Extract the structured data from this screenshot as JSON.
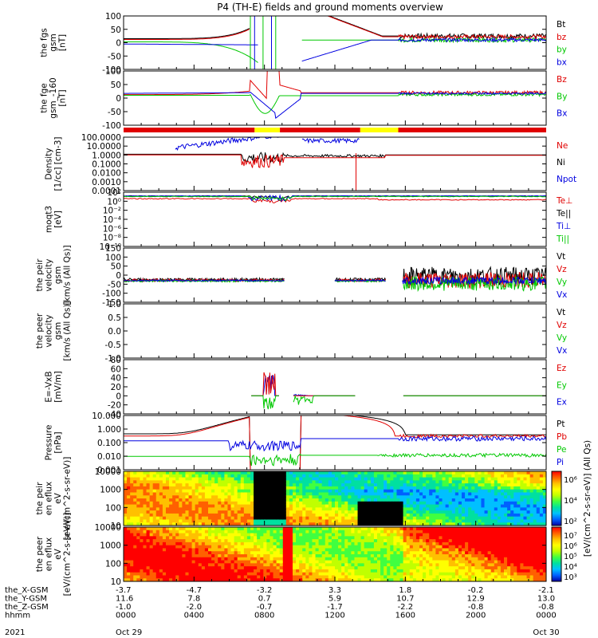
{
  "title": "P4 (TH-E) fields and ground moments overview",
  "colors": {
    "black": "#000000",
    "red": "#e00000",
    "green": "#00c800",
    "blue": "#0000e0",
    "yellow": "#ffff00"
  },
  "chart_data": [
    {
      "type": "line",
      "ylabel": "the fgs gsm [nT]",
      "ylim": [
        -100,
        100
      ],
      "yticks": [
        "100",
        "50",
        "0",
        "-50",
        "-100"
      ],
      "legend": [
        {
          "label": "Bt",
          "color": "black"
        },
        {
          "label": "bz",
          "color": "red"
        },
        {
          "label": "by",
          "color": "green"
        },
        {
          "label": "bx",
          "color": "blue"
        }
      ]
    },
    {
      "type": "line",
      "ylabel": "the fge gsm_-160 [nT]",
      "ylim": [
        -130,
        100
      ],
      "yticks": [
        "100",
        "50",
        "0",
        "-50",
        "-100"
      ],
      "legend": [
        {
          "label": "Bz",
          "color": "red"
        },
        {
          "label": "By",
          "color": "green"
        },
        {
          "label": "Bx",
          "color": "blue"
        }
      ]
    },
    {
      "type": "line",
      "ylabel": "Density [1/cc] [cm-3]",
      "scale": "log",
      "ylim": [
        0.0001,
        100
      ],
      "yticks": [
        "100.0000",
        "10.0000",
        "1.0000",
        "0.1000",
        "0.0100",
        "0.0010",
        "0.0001"
      ],
      "legend": [
        {
          "label": "Ne",
          "color": "red"
        },
        {
          "label": "Ni",
          "color": "black"
        },
        {
          "label": "Npot",
          "color": "blue"
        }
      ]
    },
    {
      "type": "line",
      "ylabel": "moqt3 [eV]",
      "scale": "log",
      "yticks": [
        "10²",
        "10⁰",
        "10⁻²",
        "10⁻⁴",
        "10⁻⁶",
        "10⁻⁸",
        "10⁻¹⁰"
      ],
      "legend": [
        {
          "label": "Te⊥",
          "color": "red"
        },
        {
          "label": "Te||",
          "color": "black"
        },
        {
          "label": "Ti⊥",
          "color": "blue"
        },
        {
          "label": "Ti||",
          "color": "green"
        }
      ]
    },
    {
      "type": "line",
      "ylabel": "the peir velocity gsm [km/s (All Qs)]",
      "ylim": [
        -150,
        150
      ],
      "yticks": [
        "150",
        "100",
        "50",
        "0",
        "-50",
        "-100",
        "-150"
      ],
      "legend": [
        {
          "label": "Vt",
          "color": "black"
        },
        {
          "label": "Vz",
          "color": "red"
        },
        {
          "label": "Vy",
          "color": "green"
        },
        {
          "label": "Vx",
          "color": "blue"
        }
      ]
    },
    {
      "type": "line",
      "ylabel": "the peer velocity gsm [km/s (All Qs)]",
      "ylim": [
        -1,
        1
      ],
      "yticks": [
        "1.0",
        "0.5",
        "0.0",
        "-0.5",
        "-1.0"
      ],
      "legend": [
        {
          "label": "Vt",
          "color": "black"
        },
        {
          "label": "Vz",
          "color": "red"
        },
        {
          "label": "Vy",
          "color": "green"
        },
        {
          "label": "Vx",
          "color": "blue"
        }
      ]
    },
    {
      "type": "line",
      "ylabel": "E=-VxB [mV/m]",
      "ylim": [
        -40,
        80
      ],
      "yticks": [
        "80",
        "60",
        "40",
        "20",
        "0",
        "-20",
        "-40"
      ],
      "legend": [
        {
          "label": "Ez",
          "color": "red"
        },
        {
          "label": "Ey",
          "color": "green"
        },
        {
          "label": "Ex",
          "color": "blue"
        }
      ]
    },
    {
      "type": "line",
      "ylabel": "Pressure [nPa]",
      "scale": "log",
      "ylim": [
        0.0003,
        10
      ],
      "yticks": [
        "10.000",
        "1.000",
        "0.100",
        "0.010",
        "0.001"
      ],
      "legend": [
        {
          "label": "Pt",
          "color": "black"
        },
        {
          "label": "Pb",
          "color": "red"
        },
        {
          "label": "Pe",
          "color": "green"
        },
        {
          "label": "Pi",
          "color": "blue"
        }
      ]
    },
    {
      "type": "heatmap",
      "ylabel": "the peir en eflux eV [eV/(cm^2-s-sr-eV)]",
      "yticks": [
        "10000",
        "1000",
        "100",
        "10"
      ],
      "colorbar_ticks": [
        "10⁶",
        "10⁴",
        "10²"
      ],
      "colorbar_label": "[eV/(cm^2-s-sr-eV)] (All Qs)"
    },
    {
      "type": "heatmap",
      "ylabel": "the peer en eflux eV [eV/(cm^2-s-sr-eV)]",
      "yticks": [
        "10000",
        "1000",
        "100",
        "10"
      ],
      "colorbar_ticks": [
        "10⁷",
        "10⁶",
        "10⁵",
        "10⁴",
        "10³"
      ]
    }
  ],
  "xaxis": {
    "rows": [
      {
        "label": "the_X-GSM",
        "values": [
          "-3.7",
          "-4.7",
          "-3.2",
          "3.3",
          "1.8",
          "-0.2",
          "-2.1"
        ]
      },
      {
        "label": "the_Y-GSM",
        "values": [
          "11.6",
          "7.8",
          "0.7",
          "5.9",
          "10.7",
          "12.9",
          "13.0"
        ]
      },
      {
        "label": "the_Z-GSM",
        "values": [
          "-1.0",
          "-2.0",
          "-0.7",
          "-1.7",
          "-2.2",
          "-0.8",
          "-0.8"
        ]
      },
      {
        "label": "hhmm",
        "values": [
          "0000",
          "0400",
          "0800",
          "1200",
          "1600",
          "2000",
          "0000"
        ]
      }
    ],
    "year": "2021",
    "start_date": "Oct 29",
    "end_date": "Oct 30"
  }
}
